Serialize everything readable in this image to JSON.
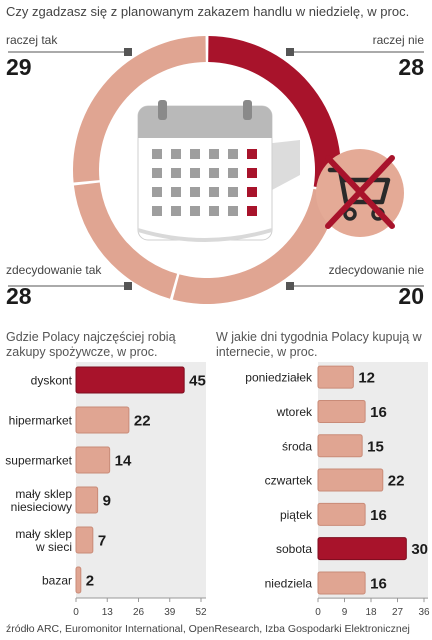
{
  "colors": {
    "accent": "#a8132b",
    "salmon": "#e0a592",
    "gray_panel": "#ececec",
    "dark": "#2a2a2a"
  },
  "title": "Czy zgadzasz się z planowanym zakazem handlu w niedzielę, w proc.",
  "source": "źródło ARC, Euromonitor International, OpenResearch, Izba Gospodarki Elektronicznej",
  "icons": [
    "calendar-icon",
    "crossed-shopping-cart-icon"
  ],
  "chart_data": [
    {
      "type": "pie",
      "title": "Czy zgadzasz się z planowanym zakazem handlu w niedzielę, w proc.",
      "categories": [
        "raczej tak",
        "raczej nie",
        "zdecydowanie nie",
        "zdecydowanie tak"
      ],
      "values": [
        29,
        28,
        20,
        28
      ],
      "colors": [
        "#a8132b",
        "#e0a592",
        "#e0a592",
        "#e0a592"
      ],
      "value_labels": [
        "29",
        "28",
        "20",
        "28"
      ]
    },
    {
      "type": "bar",
      "orientation": "horizontal",
      "title": "Gdzie Polacy najczęściej robią zakupy spożywcze, w proc.",
      "categories": [
        "dyskont",
        "hipermarket",
        "supermarket",
        "mały sklep niesieciowy",
        "mały sklep w sieci",
        "bazar"
      ],
      "values": [
        45,
        22,
        14,
        9,
        7,
        2
      ],
      "highlight": [
        "dyskont"
      ],
      "xlim": [
        0,
        52
      ],
      "xticks": [
        "0",
        "13",
        "26",
        "39",
        "52"
      ],
      "grid": false
    },
    {
      "type": "bar",
      "orientation": "horizontal",
      "title": "W jakie dni tygodnia Polacy kupują w internecie, w proc.",
      "categories": [
        "poniedziałek",
        "wtorek",
        "środa",
        "czwartek",
        "piątek",
        "sobota",
        "niedziela"
      ],
      "values": [
        12,
        16,
        15,
        22,
        16,
        30,
        16
      ],
      "highlight": [
        "sobota"
      ],
      "xlim": [
        0,
        36
      ],
      "xticks": [
        "0",
        "9",
        "18",
        "27",
        "36"
      ],
      "grid": false
    }
  ]
}
